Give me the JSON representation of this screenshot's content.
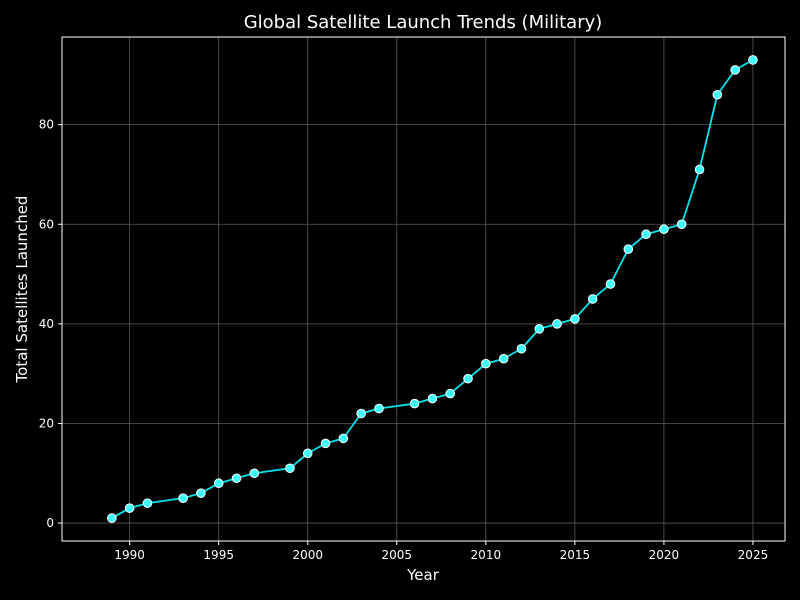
{
  "chart_data": {
    "type": "line",
    "title": "Global Satellite Launch Trends (Military)",
    "xlabel": "Year",
    "ylabel": "Total Satellites Launched",
    "xlim": [
      1986.2,
      2026.8
    ],
    "ylim": [
      -3.6,
      97.6
    ],
    "xticks": [
      1990,
      1995,
      2000,
      2005,
      2010,
      2015,
      2020,
      2025
    ],
    "yticks": [
      0,
      20,
      40,
      60,
      80
    ],
    "grid": true,
    "legend": "none",
    "colors": {
      "background": "#000000",
      "line": "#00e5ee",
      "marker_fill": "#40ffff",
      "marker_edge": "#ffffff",
      "grid": "#5a5a5a",
      "axes": "#ffffff"
    },
    "series": [
      {
        "x": [
          1989,
          1990,
          1991,
          1993,
          1994,
          1995,
          1996,
          1997,
          1999,
          2000,
          2001,
          2002,
          2003,
          2004,
          2006,
          2007,
          2008,
          2009,
          2010,
          2011,
          2012,
          2013,
          2014,
          2015,
          2016,
          2017,
          2018,
          2019,
          2020,
          2021,
          2022,
          2023,
          2024,
          2025
        ],
        "values": [
          1,
          3,
          4,
          5,
          6,
          8,
          9,
          10,
          11,
          14,
          16,
          17,
          22,
          23,
          24,
          25,
          26,
          29,
          32,
          33,
          35,
          39,
          40,
          41,
          45,
          48,
          55,
          58,
          59,
          60,
          71,
          86,
          91,
          93
        ]
      }
    ]
  }
}
